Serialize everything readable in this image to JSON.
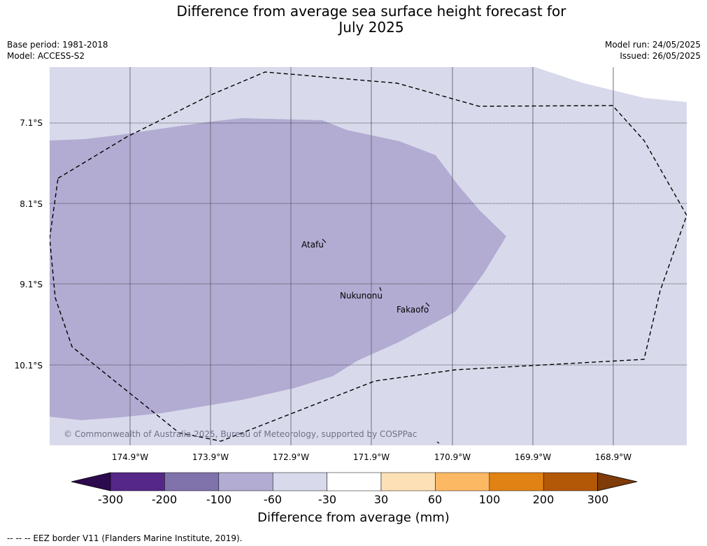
{
  "title_line1": "Difference from average sea surface height forecast for",
  "title_line2": "July 2025",
  "base_period": "Base period: 1981-2018",
  "model": "Model: ACCESS-S2",
  "model_run": "Model run: 24/05/2025",
  "issued": "Issued: 26/05/2025",
  "lat_labels": [
    "7.1°S",
    "8.1°S",
    "9.1°S",
    "10.1°S"
  ],
  "lon_labels": [
    "174.9°W",
    "173.9°W",
    "172.9°W",
    "171.9°W",
    "170.9°W",
    "169.9°W",
    "168.9°W"
  ],
  "places": [
    "Atafu",
    "Nukunonu",
    "Fakaofo"
  ],
  "copyright": "© Commonwealth of Australia 2025, Bureau of Meteorology, supported by COSPPac",
  "colorbar": {
    "ticks": [
      "-300",
      "-200",
      "-100",
      "-60",
      "-30",
      "30",
      "60",
      "100",
      "200",
      "300"
    ],
    "colors": [
      "#2d0a4e",
      "#542788",
      "#8073ac",
      "#b2abd2",
      "#d8daeb",
      "#ffffff",
      "#fee0b6",
      "#fdb863",
      "#e08214",
      "#b35806",
      "#7f3b08"
    ],
    "label": "Difference from average (mm)"
  },
  "map_colors": {
    "background": "#d8daeb",
    "anomaly_region": "#b2abd2"
  },
  "footnote": "--  --  -- EEZ border V11 (Flanders Marine Institute, 2019)."
}
